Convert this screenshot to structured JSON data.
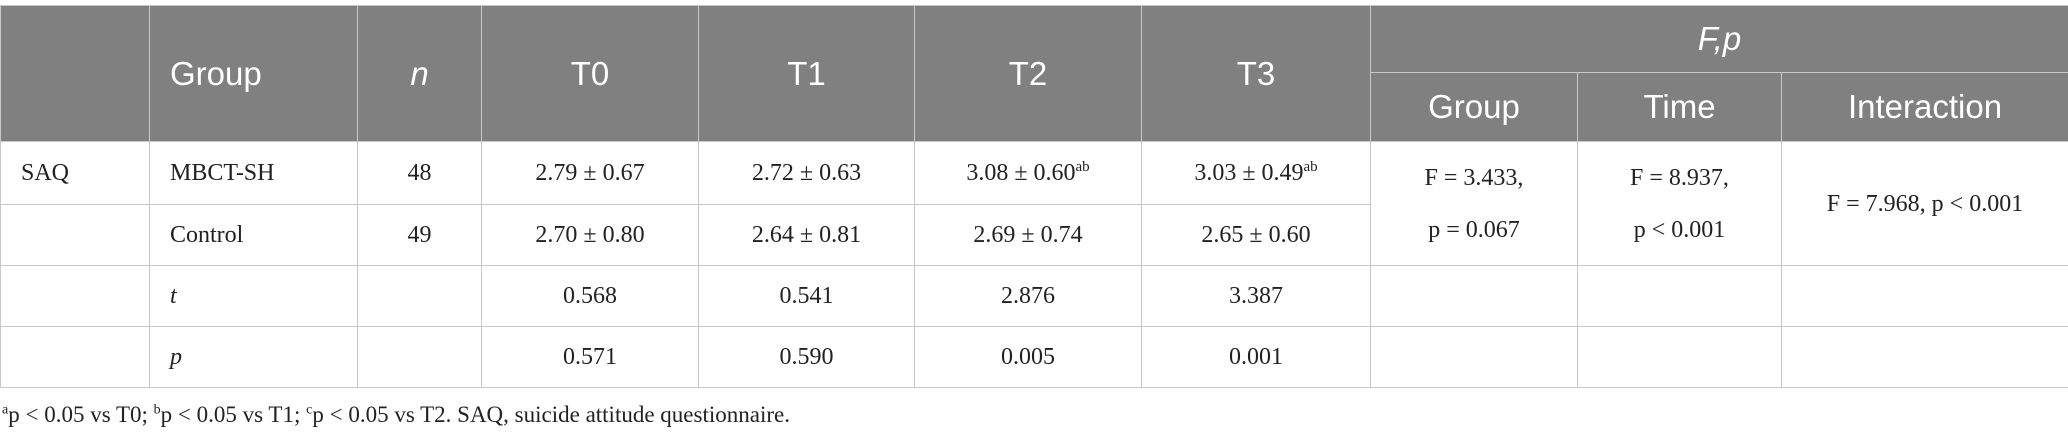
{
  "header": {
    "group": "Group",
    "n": "n",
    "times": [
      "T0",
      "T1",
      "T2",
      "T3"
    ],
    "fp": "F,p",
    "sub": [
      "Group",
      "Time",
      "Interaction"
    ]
  },
  "rows": [
    {
      "label": "SAQ",
      "group": "MBCT-SH",
      "n": 48,
      "cells": [
        {
          "text": "2.79 ± 0.67"
        },
        {
          "text": "2.72 ± 0.63"
        },
        {
          "text": "3.08 ± 0.60",
          "sup": "ab"
        },
        {
          "text": "3.03 ± 0.49",
          "sup": "ab"
        }
      ]
    },
    {
      "group": "Control",
      "n": 49,
      "cells": [
        {
          "text": "2.70 ± 0.80"
        },
        {
          "text": "2.64 ± 0.81"
        },
        {
          "text": "2.69 ± 0.74"
        },
        {
          "text": "2.65 ± 0.60"
        }
      ]
    },
    {
      "group": "t",
      "cells": [
        {
          "text": "0.568"
        },
        {
          "text": "0.541"
        },
        {
          "text": "2.876"
        },
        {
          "text": "3.387"
        }
      ]
    },
    {
      "group": "p",
      "cells": [
        {
          "text": "0.571"
        },
        {
          "text": "0.590"
        },
        {
          "text": "0.005"
        },
        {
          "text": "0.001"
        }
      ]
    }
  ],
  "stats": [
    [
      "F = 3.433,",
      "p = 0.067"
    ],
    [
      "F = 8.937,",
      "p < 0.001"
    ],
    [
      "F = 7.968, p < 0.001"
    ]
  ],
  "footnote": {
    "notes": [
      {
        "mark": "a",
        "text": "p < 0.05 vs T0;"
      },
      {
        "mark": "b",
        "text": "p < 0.05 vs T1;"
      },
      {
        "mark": "c",
        "text": "p < 0.05 vs T2."
      }
    ],
    "tail": "SAQ, suicide attitude questionnaire."
  }
}
